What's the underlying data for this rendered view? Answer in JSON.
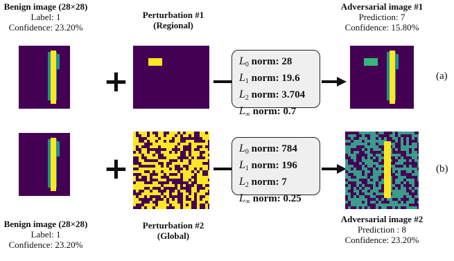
{
  "colors": {
    "background": "#440154",
    "digit": "#fde725",
    "digit_edge": "#21918c",
    "mid": "#3b9b8c",
    "patch": "#35b779",
    "box_fill": "#efefef"
  },
  "row_a": {
    "benign": {
      "title": "Benign image (28×28)",
      "line1": "Label: 1",
      "line2": "Confidence: 23.20%"
    },
    "perturbation": {
      "title": "Perturbation #1",
      "subtitle": "(Regional)"
    },
    "norms": [
      {
        "symbol": "L",
        "sub": "0",
        "word": "norm:",
        "value": "28"
      },
      {
        "symbol": "L",
        "sub": "1",
        "word": "norm:",
        "value": "19.6"
      },
      {
        "symbol": "L",
        "sub": "2",
        "word": "norm:",
        "value": "3.704"
      },
      {
        "symbol": "L",
        "sub": "∞",
        "word": "norm:",
        "value": "0.7"
      }
    ],
    "adversarial": {
      "title": "Adversarial image #1",
      "line1": "Prediction: 7",
      "line2": "Confidence: 15.80%"
    },
    "tag": "(a)"
  },
  "row_b": {
    "benign": {
      "title": "Benign image (28×28)",
      "line1": "Label: 1",
      "line2": "Confidence: 23.20%"
    },
    "perturbation": {
      "title": "Perturbation #2",
      "subtitle": "(Global)"
    },
    "norms": [
      {
        "symbol": "L",
        "sub": "0",
        "word": "norm:",
        "value": "784"
      },
      {
        "symbol": "L",
        "sub": "1",
        "word": "norm:",
        "value": "196"
      },
      {
        "symbol": "L",
        "sub": "2",
        "word": "norm:",
        "value": "7"
      },
      {
        "symbol": "L",
        "sub": "∞",
        "word": "norm:",
        "value": "0.25"
      }
    ],
    "adversarial": {
      "title": "Adversarial image #2",
      "line1": "Prediction : 8",
      "line2": "Confidence: 23.20%"
    },
    "tag": "(b)"
  },
  "operators": {
    "plus": "+"
  }
}
